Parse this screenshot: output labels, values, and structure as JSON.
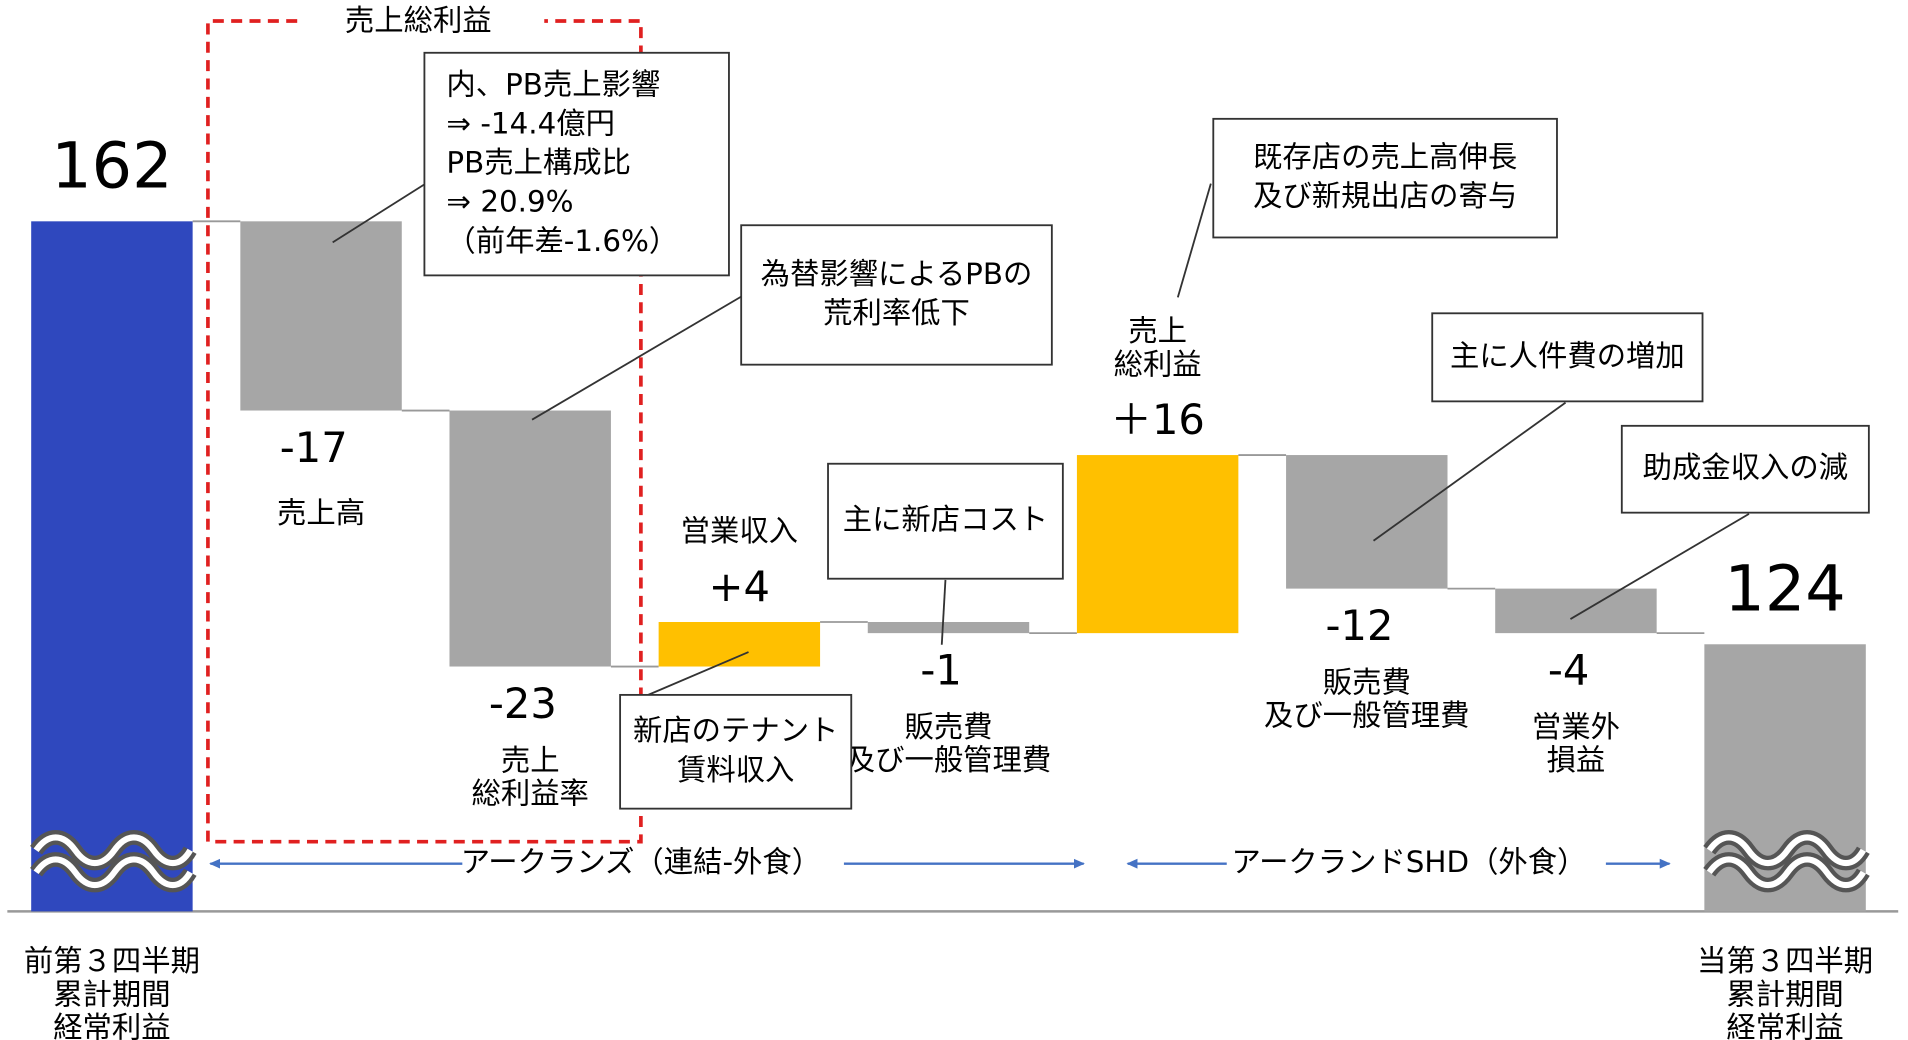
{
  "chart_data": {
    "type": "waterfall",
    "categories": [
      [
        "前第３四半期",
        "累計期間",
        "経常利益"
      ],
      [
        "売上高"
      ],
      [
        "売上",
        "総利益率"
      ],
      [
        "営業収入"
      ],
      [
        "販売費",
        "及び一般管理費"
      ],
      [
        "売上",
        "総利益"
      ],
      [
        "販売費",
        "及び一般管理費"
      ],
      [
        "営業外",
        "損益"
      ],
      [
        "当第３四半期",
        "累計期間",
        "経常利益"
      ]
    ],
    "measure": [
      "absolute",
      "relative",
      "relative",
      "relative",
      "relative",
      "relative",
      "relative",
      "relative",
      "total"
    ],
    "values": [
      162,
      -17,
      -23,
      4,
      -1,
      16,
      -12,
      -4,
      124
    ],
    "value_labels": [
      "162",
      "-17",
      "-23",
      "+4",
      "-1",
      "＋16",
      "-12",
      "-4",
      "124"
    ],
    "colors": [
      "#2f48be",
      "#a6a6a6",
      "#a6a6a6",
      "#ffc000",
      "#a6a6a6",
      "#ffc000",
      "#a6a6a6",
      "#a6a6a6",
      "#a6a6a6"
    ],
    "ylim": [
      100,
      170
    ],
    "bracket_title": "売上総利益",
    "segments": [
      "アークランズ（連結-外食）",
      "アークランドSHD（外食）"
    ],
    "callouts": [
      {
        "lines": [
          "内、PB売上影響",
          "⇒ -14.4億円",
          "PB売上構成比",
          "⇒ 20.9%",
          "（前年差-1.6%）"
        ]
      },
      {
        "lines": [
          "為替影響によるPBの",
          "荒利率低下"
        ]
      },
      {
        "lines": [
          "主に新店コスト"
        ]
      },
      {
        "lines": [
          "新店のテナント",
          "賃料収入"
        ]
      },
      {
        "lines": [
          "既存店の売上高伸長",
          "及び新規出店の寄与"
        ]
      },
      {
        "lines": [
          "主に人件費の増加"
        ]
      },
      {
        "lines": [
          "助成金収入の減"
        ]
      }
    ]
  }
}
